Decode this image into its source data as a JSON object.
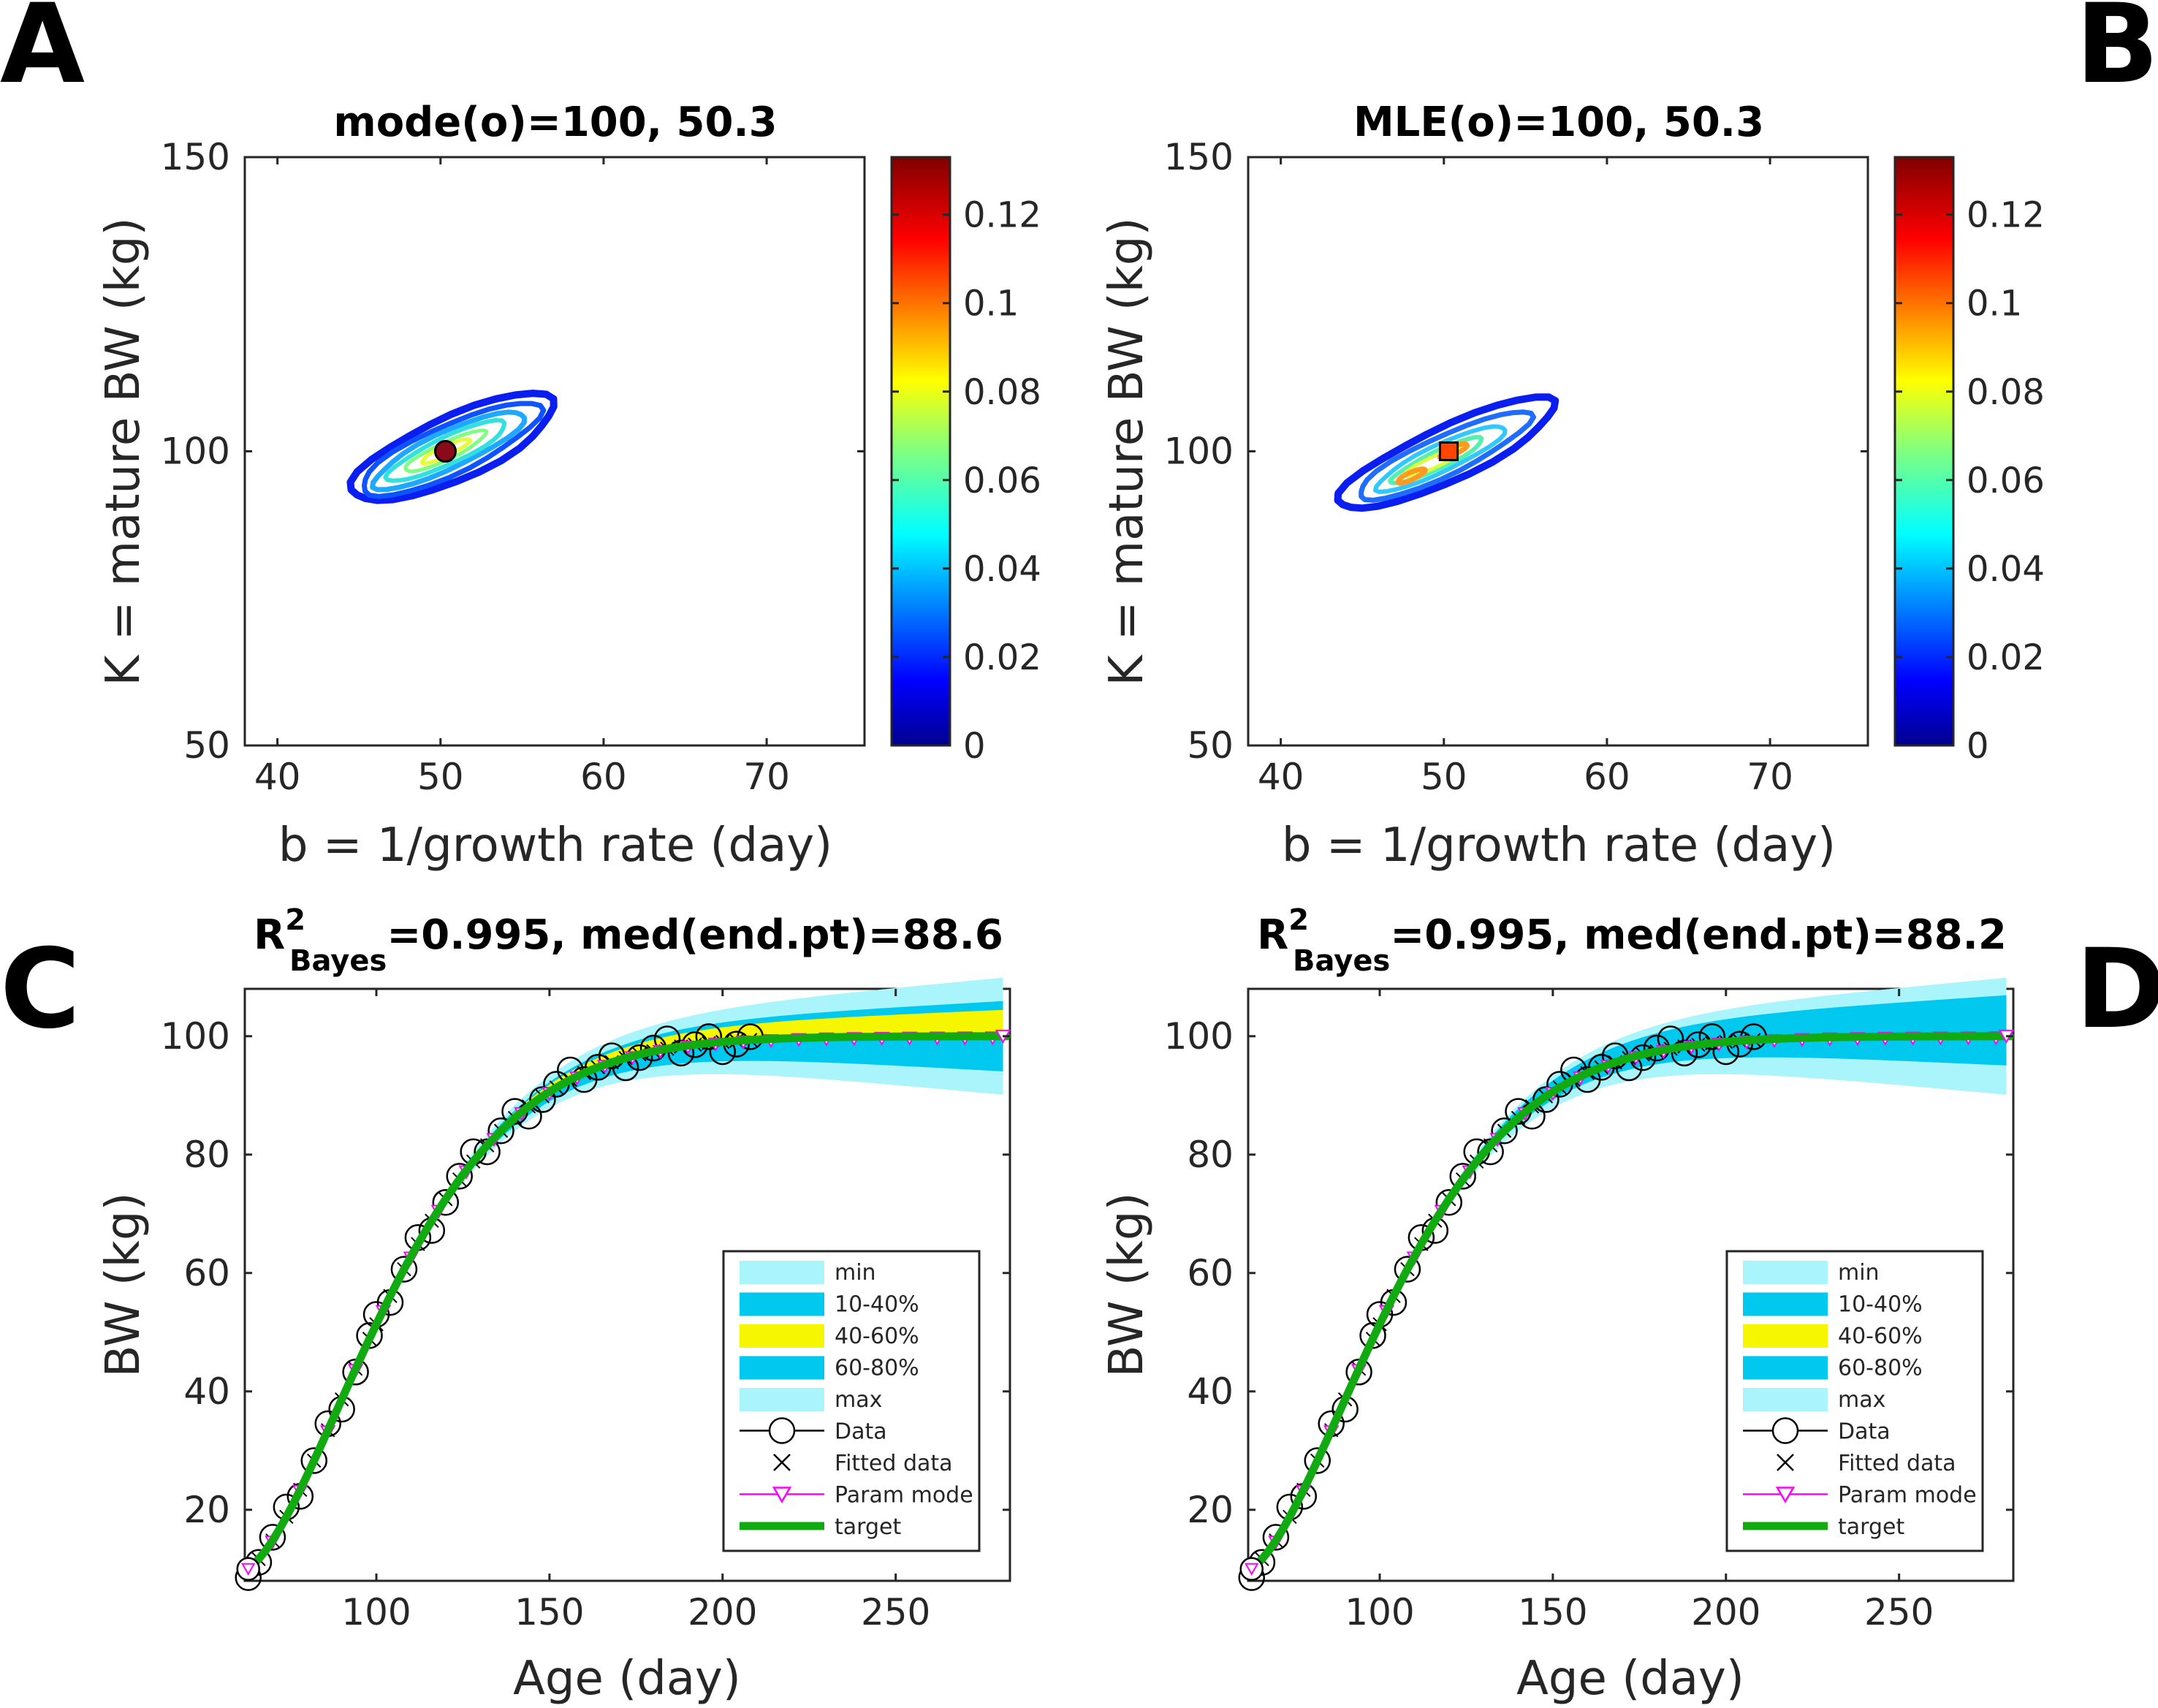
{
  "panels": {
    "A": "A",
    "B": "B",
    "C": "C",
    "D": "D"
  },
  "chart_data": [
    {
      "panel": "A",
      "type": "contour",
      "title": "mode(o)=100, 50.3",
      "xlabel": "b = 1/growth rate (day)",
      "ylabel": "K = mature BW (kg)",
      "xlim": [
        38,
        76
      ],
      "ylim": [
        50,
        150
      ],
      "xticks": [
        "40",
        "50",
        "60",
        "70"
      ],
      "yticks": [
        "50",
        "100",
        "150"
      ],
      "colorbar": {
        "min": 0,
        "max": 0.133,
        "ticks": [
          "0",
          "0.02",
          "0.04",
          "0.06",
          "0.08",
          "0.1",
          "0.12"
        ]
      },
      "marker": {
        "shape": "circle",
        "x": 50.3,
        "y": 100,
        "color": "#8b0a1a"
      }
    },
    {
      "panel": "B",
      "type": "contour",
      "title": "MLE(o)=100, 50.3",
      "xlabel": "b = 1/growth rate (day)",
      "ylabel": "K = mature BW (kg)",
      "xlim": [
        38,
        76
      ],
      "ylim": [
        50,
        150
      ],
      "xticks": [
        "40",
        "50",
        "60",
        "70"
      ],
      "yticks": [
        "50",
        "100",
        "150"
      ],
      "colorbar": {
        "min": 0,
        "max": 0.133,
        "ticks": [
          "0",
          "0.02",
          "0.04",
          "0.06",
          "0.08",
          "0.1",
          "0.12"
        ]
      },
      "marker": {
        "shape": "square",
        "x": 50.3,
        "y": 100,
        "color": "#ff4500"
      }
    },
    {
      "panel": "C",
      "type": "line",
      "title_R": "R",
      "title_sup": "2",
      "title_sub": "Bayes",
      "title_rest": "=0.995,  med(end.pt)=88.6",
      "xlabel": "Age (day)",
      "ylabel": "BW (kg)",
      "xlim": [
        62,
        283
      ],
      "ylim": [
        8,
        108
      ],
      "xticks": [
        "100",
        "150",
        "200",
        "250"
      ],
      "yticks": [
        "20",
        "40",
        "60",
        "80",
        "100"
      ],
      "bands": {
        "min": [
          -10,
          10
        ],
        "p10_40": [
          -6,
          6
        ],
        "p40_60": [
          0,
          4.5
        ]
      },
      "legend": [
        "min",
        "10-40%",
        "40-60%",
        "60-80%",
        "max",
        "Data",
        "Fitted data",
        "Param mode",
        "target"
      ]
    },
    {
      "panel": "D",
      "type": "line",
      "title_R": "R",
      "title_sup": "2",
      "title_sub": "Bayes",
      "title_rest": "=0.995,  med(end.pt)=88.2",
      "xlabel": "Age (day)",
      "ylabel": "BW (kg)",
      "xlim": [
        62,
        283
      ],
      "ylim": [
        8,
        108
      ],
      "xticks": [
        "100",
        "150",
        "200",
        "250"
      ],
      "yticks": [
        "20",
        "40",
        "60",
        "80",
        "100"
      ],
      "bands": {
        "min": [
          -10,
          10
        ],
        "p10_40": [
          -5,
          7
        ],
        "p40_60": [
          0,
          0
        ]
      },
      "legend": [
        "min",
        "10-40%",
        "40-60%",
        "60-80%",
        "max",
        "Data",
        "Fitted data",
        "Param mode",
        "target"
      ]
    }
  ],
  "growth_model": {
    "K": 100,
    "b": 50.3,
    "t0": 62,
    "w0": 10
  },
  "data_ages": [
    63,
    66,
    70,
    74,
    78,
    82,
    86,
    90,
    94,
    98,
    100,
    104,
    108,
    112,
    116,
    120,
    124,
    128,
    132,
    136,
    140,
    144,
    148,
    152,
    156,
    160,
    164,
    168,
    172,
    176,
    180,
    184,
    188,
    192,
    196,
    200,
    204,
    208
  ]
}
